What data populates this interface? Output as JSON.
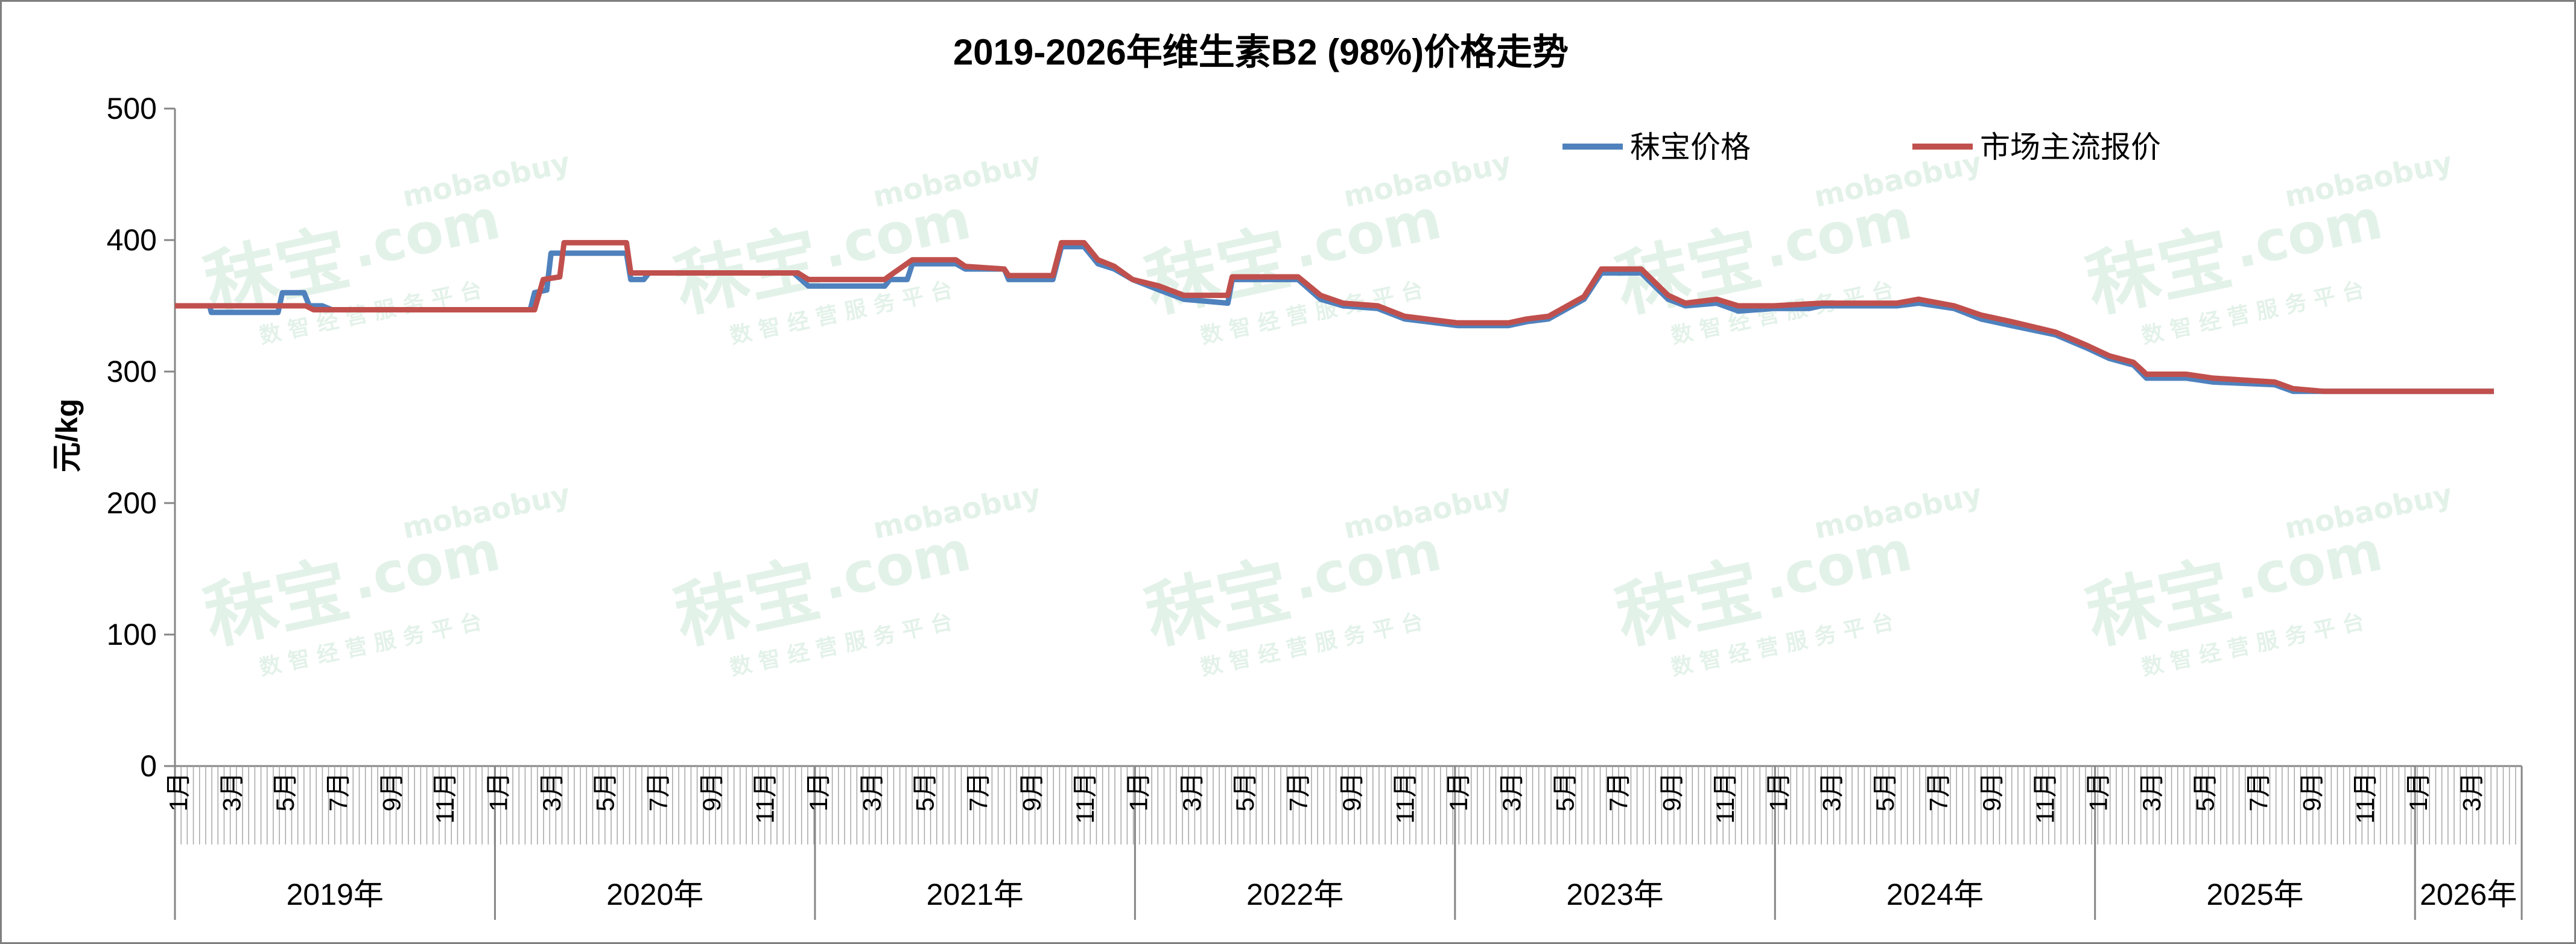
{
  "watermark": {
    "brand": "秣宝",
    "domain": ".com",
    "sub_domain": "mobaobuy",
    "tagline": "数 智 经 营 服 务 平 台"
  },
  "chart_data": {
    "type": "line",
    "title": "2019-2026年维生素B2 (98%)价格走势",
    "xlabel": "",
    "ylabel": "元/kg",
    "ylim": [
      0,
      500
    ],
    "yticks": [
      0,
      100,
      200,
      300,
      400,
      500
    ],
    "grid": false,
    "legend_position": "top-right",
    "x_range": [
      "2019-01",
      "2026-05"
    ],
    "month_tick_labels": [
      "1月",
      "3月",
      "5月",
      "7月",
      "9月",
      "11月"
    ],
    "year_groups": [
      {
        "label": "2019年",
        "months": 12
      },
      {
        "label": "2020年",
        "months": 12
      },
      {
        "label": "2021年",
        "months": 12
      },
      {
        "label": "2022年",
        "months": 12
      },
      {
        "label": "2023年",
        "months": 12
      },
      {
        "label": "2024年",
        "months": 12
      },
      {
        "label": "2025年",
        "months": 12
      },
      {
        "label": "2026年",
        "months": 4
      }
    ],
    "series": [
      {
        "name": "秣宝价格",
        "color": "#4f81bd",
        "points": [
          [
            "2019-01-01",
            350
          ],
          [
            "2019-02-10",
            350
          ],
          [
            "2019-02-12",
            345
          ],
          [
            "2019-04-30",
            345
          ],
          [
            "2019-05-05",
            360
          ],
          [
            "2019-05-30",
            360
          ],
          [
            "2019-06-05",
            350
          ],
          [
            "2019-06-20",
            350
          ],
          [
            "2019-07-01",
            347
          ],
          [
            "2020-02-15",
            347
          ],
          [
            "2020-02-20",
            360
          ],
          [
            "2020-03-05",
            362
          ],
          [
            "2020-03-10",
            390
          ],
          [
            "2020-06-05",
            390
          ],
          [
            "2020-06-10",
            370
          ],
          [
            "2020-06-25",
            370
          ],
          [
            "2020-07-01",
            375
          ],
          [
            "2020-12-15",
            375
          ],
          [
            "2021-01-01",
            365
          ],
          [
            "2021-03-30",
            365
          ],
          [
            "2021-04-05",
            370
          ],
          [
            "2021-04-25",
            370
          ],
          [
            "2021-05-01",
            382
          ],
          [
            "2021-06-20",
            382
          ],
          [
            "2021-07-01",
            378
          ],
          [
            "2021-08-15",
            378
          ],
          [
            "2021-08-20",
            370
          ],
          [
            "2021-10-10",
            370
          ],
          [
            "2021-10-20",
            395
          ],
          [
            "2021-11-15",
            395
          ],
          [
            "2021-12-01",
            382
          ],
          [
            "2021-12-20",
            378
          ],
          [
            "2022-01-10",
            370
          ],
          [
            "2022-02-10",
            362
          ],
          [
            "2022-03-10",
            355
          ],
          [
            "2022-04-30",
            352
          ],
          [
            "2022-05-05",
            370
          ],
          [
            "2022-07-20",
            370
          ],
          [
            "2022-08-15",
            355
          ],
          [
            "2022-09-10",
            350
          ],
          [
            "2022-10-20",
            348
          ],
          [
            "2022-11-20",
            340
          ],
          [
            "2022-12-15",
            338
          ],
          [
            "2023-01-20",
            335
          ],
          [
            "2023-03-20",
            335
          ],
          [
            "2023-04-10",
            338
          ],
          [
            "2023-05-05",
            340
          ],
          [
            "2023-06-15",
            355
          ],
          [
            "2023-07-05",
            375
          ],
          [
            "2023-08-20",
            375
          ],
          [
            "2023-09-20",
            355
          ],
          [
            "2023-10-10",
            350
          ],
          [
            "2023-11-15",
            352
          ],
          [
            "2023-12-10",
            346
          ],
          [
            "2024-01-20",
            348
          ],
          [
            "2024-03-01",
            348
          ],
          [
            "2024-03-15",
            350
          ],
          [
            "2024-06-10",
            350
          ],
          [
            "2024-07-05",
            352
          ],
          [
            "2024-08-15",
            348
          ],
          [
            "2024-09-15",
            340
          ],
          [
            "2024-10-20",
            335
          ],
          [
            "2024-12-10",
            328
          ],
          [
            "2025-01-15",
            318
          ],
          [
            "2025-02-10",
            310
          ],
          [
            "2025-03-10",
            305
          ],
          [
            "2025-03-25",
            295
          ],
          [
            "2025-05-10",
            295
          ],
          [
            "2025-06-10",
            292
          ],
          [
            "2025-08-20",
            290
          ],
          [
            "2025-09-10",
            285
          ],
          [
            "2026-04-30",
            285
          ]
        ]
      },
      {
        "name": "市场主流报价",
        "color": "#c0504d",
        "points": [
          [
            "2019-01-01",
            350
          ],
          [
            "2019-06-01",
            350
          ],
          [
            "2019-06-10",
            347
          ],
          [
            "2020-02-20",
            347
          ],
          [
            "2020-03-01",
            370
          ],
          [
            "2020-03-20",
            372
          ],
          [
            "2020-03-25",
            398
          ],
          [
            "2020-06-05",
            398
          ],
          [
            "2020-06-10",
            375
          ],
          [
            "2020-12-20",
            375
          ],
          [
            "2021-01-01",
            370
          ],
          [
            "2021-03-30",
            370
          ],
          [
            "2021-04-05",
            373
          ],
          [
            "2021-05-01",
            385
          ],
          [
            "2021-06-20",
            385
          ],
          [
            "2021-07-01",
            380
          ],
          [
            "2021-08-15",
            378
          ],
          [
            "2021-08-20",
            373
          ],
          [
            "2021-10-10",
            373
          ],
          [
            "2021-10-20",
            398
          ],
          [
            "2021-11-15",
            398
          ],
          [
            "2021-12-01",
            385
          ],
          [
            "2021-12-20",
            380
          ],
          [
            "2022-01-10",
            370
          ],
          [
            "2022-02-10",
            365
          ],
          [
            "2022-03-10",
            358
          ],
          [
            "2022-04-30",
            358
          ],
          [
            "2022-05-05",
            372
          ],
          [
            "2022-07-20",
            372
          ],
          [
            "2022-08-15",
            358
          ],
          [
            "2022-09-10",
            352
          ],
          [
            "2022-10-20",
            350
          ],
          [
            "2022-11-20",
            342
          ],
          [
            "2022-12-15",
            340
          ],
          [
            "2023-01-20",
            337
          ],
          [
            "2023-03-20",
            337
          ],
          [
            "2023-04-10",
            340
          ],
          [
            "2023-05-05",
            342
          ],
          [
            "2023-06-15",
            357
          ],
          [
            "2023-07-05",
            378
          ],
          [
            "2023-08-20",
            378
          ],
          [
            "2023-09-20",
            358
          ],
          [
            "2023-10-10",
            352
          ],
          [
            "2023-11-15",
            355
          ],
          [
            "2023-12-10",
            350
          ],
          [
            "2024-01-20",
            350
          ],
          [
            "2024-03-15",
            352
          ],
          [
            "2024-06-10",
            352
          ],
          [
            "2024-07-05",
            355
          ],
          [
            "2024-08-15",
            350
          ],
          [
            "2024-09-15",
            343
          ],
          [
            "2024-10-20",
            338
          ],
          [
            "2024-12-10",
            330
          ],
          [
            "2025-01-15",
            320
          ],
          [
            "2025-02-10",
            312
          ],
          [
            "2025-03-10",
            307
          ],
          [
            "2025-03-25",
            298
          ],
          [
            "2025-05-10",
            298
          ],
          [
            "2025-06-10",
            295
          ],
          [
            "2025-08-20",
            292
          ],
          [
            "2025-09-10",
            287
          ],
          [
            "2025-10-15",
            285
          ],
          [
            "2026-04-30",
            285
          ]
        ]
      }
    ]
  }
}
